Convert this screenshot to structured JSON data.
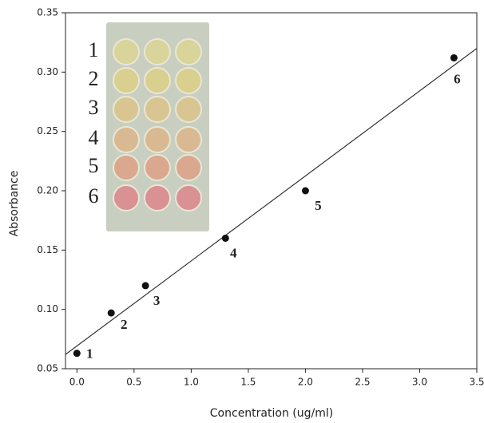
{
  "chart_data": {
    "type": "scatter",
    "x_label": "Concentration (ug/ml)",
    "y_label": "Absorbance",
    "x": [
      0,
      0.3,
      0.6,
      1.3,
      2.0,
      3.3
    ],
    "values": [
      0.063,
      0.097,
      0.12,
      0.16,
      0.2,
      0.312
    ],
    "point_labels": [
      "1",
      "2",
      "3",
      "4",
      "5",
      "6"
    ],
    "color": "#111111",
    "fit_line": {
      "x": [
        -0.1,
        3.5
      ],
      "y": [
        0.062,
        0.32
      ],
      "color": "#333333"
    },
    "inset_labels": [
      "1",
      "2",
      "3",
      "4",
      "5",
      "6"
    ],
    "xlim": [
      -0.1,
      3.5
    ],
    "xticks": [
      {
        "value": 0,
        "label": "0.0"
      },
      0.5,
      {
        "value": 1,
        "label": "1.0"
      },
      1.5,
      {
        "value": 2,
        "label": "2.0"
      },
      2.5,
      {
        "value": 3,
        "label": "3.0"
      },
      3.5
    ],
    "ylim": [
      0.05,
      0.35
    ],
    "yticks": [
      0.05,
      {
        "value": 0.1,
        "label": "0.10"
      },
      0.15,
      {
        "value": 0.2,
        "label": "0.20"
      },
      0.25,
      {
        "value": 0.3,
        "label": "0.30"
      },
      0.35
    ],
    "grid": false
  }
}
